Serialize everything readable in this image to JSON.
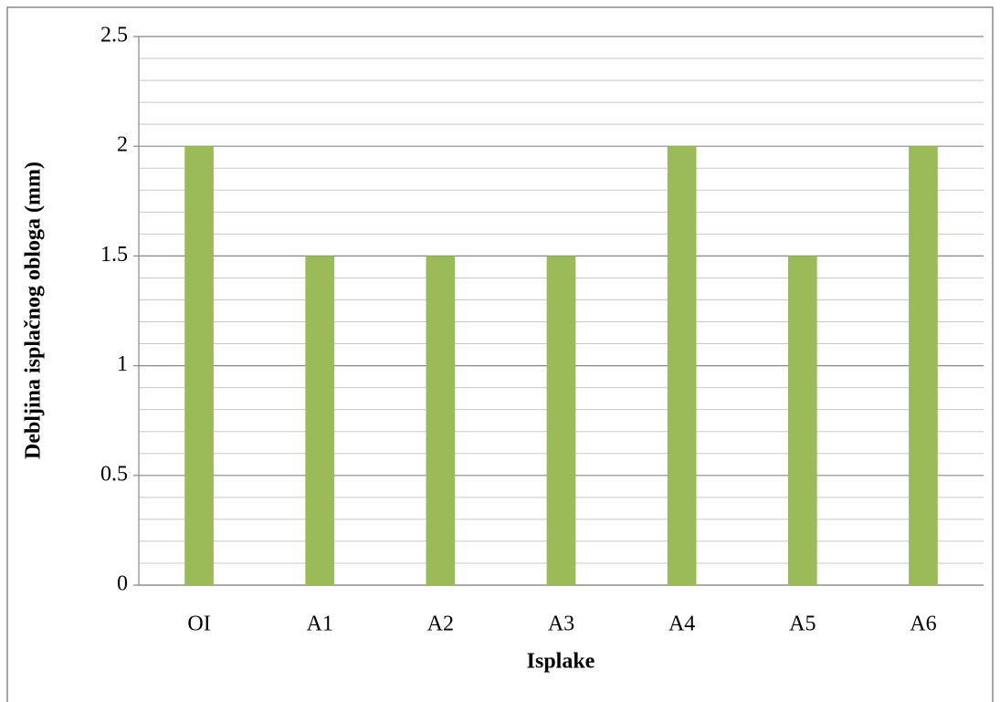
{
  "chart_data": {
    "type": "bar",
    "x_label": "Isplake",
    "y_label": "Debljina isplačnog  obloga  (mm)",
    "categories": [
      "OI",
      "A1",
      "A2",
      "A3",
      "A4",
      "A5",
      "A6"
    ],
    "values": [
      2,
      1.5,
      1.5,
      1.5,
      2,
      1.5,
      2
    ],
    "color": "#9bbb59",
    "ylim": [
      0,
      2.5
    ],
    "yticks": [
      0,
      0.5,
      1,
      1.5,
      2,
      2.5
    ],
    "minor_yticks": [
      0.1,
      0.2,
      0.3,
      0.4,
      0.6,
      0.7,
      0.8,
      0.9,
      1.1,
      1.2,
      1.3,
      1.4,
      1.6,
      1.7,
      1.8,
      1.9,
      2.1,
      2.2,
      2.3,
      2.4
    ],
    "grid": true
  }
}
